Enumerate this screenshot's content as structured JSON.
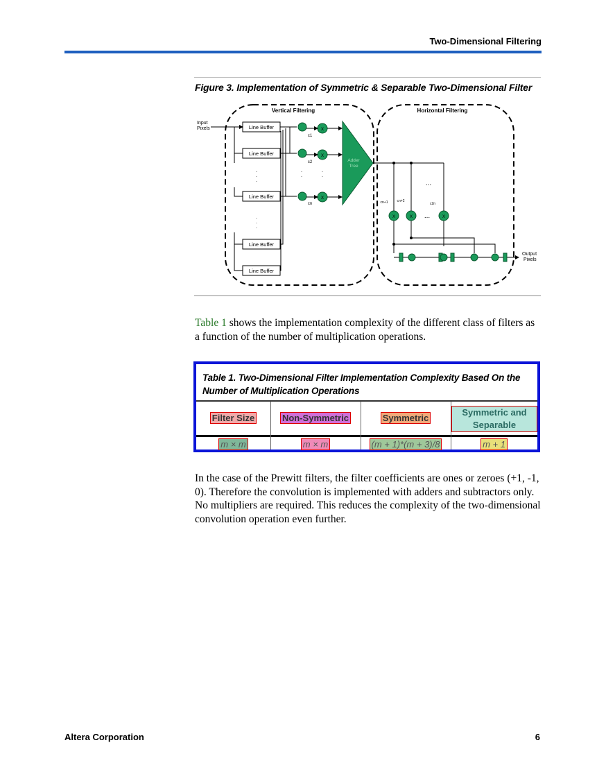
{
  "header": {
    "title": "Two-Dimensional Filtering"
  },
  "figure": {
    "title": "Figure 3. Implementation of Symmetric & Separable Two-Dimensional Filter",
    "vertical_label": "Vertical Filtering",
    "horizontal_label": "Horizontal Filtering",
    "input_label_1": "Input",
    "input_label_2": "Pixels",
    "output_label_1": "Output",
    "output_label_2": "Pixels",
    "line_buffer": "Line Buffer",
    "adder_1": "Adder",
    "adder_2": "Tree",
    "multiplier": "X",
    "dots": "...",
    "coef_c1": "c1",
    "coef_c2": "c2",
    "coef_cn": "cn",
    "coef_h1": "cn+1",
    "coef_h2": "cn+2",
    "coef_h3": "c2n"
  },
  "paragraph1": {
    "link": "Table 1",
    "text": " shows the implementation complexity of the different class of filters as a function of the number of multiplication operations."
  },
  "table": {
    "title": "Table 1. Two-Dimensional Filter Implementation Complexity Based On the Number of Multiplication Operations",
    "headers": [
      "Filter Size",
      "Non-Symmetric",
      "Symmetric",
      "Symmetric and Separable"
    ],
    "row": [
      "m × m",
      "m × m",
      "(m + 1)*(m + 3)/8",
      "m + 1"
    ]
  },
  "paragraph2": {
    "text": "In the case of the Prewitt filters, the filter coefficients are ones or zeroes (+1, -1, 0). Therefore the convolution is implemented with adders and subtractors only. No multipliers are required. This reduces the complexity of the two-dimensional convolution operation even further."
  },
  "footer": {
    "left": "Altera Corporation",
    "right": "6"
  },
  "colors": {
    "header_rule": "#1f5fbf",
    "table_border": "#0a14d8",
    "node_green": "#1a9a5a",
    "link_green": "#2a7a2a"
  }
}
